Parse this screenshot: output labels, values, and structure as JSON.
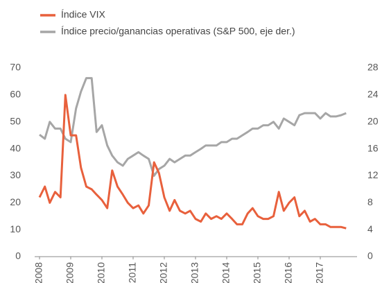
{
  "chart_data": {
    "type": "line",
    "series": [
      {
        "name": "Índice VIX",
        "color": "#e8603c",
        "values": [
          22,
          26,
          20,
          24,
          22,
          60,
          45,
          45,
          33,
          26,
          25,
          23,
          21,
          18,
          32,
          26,
          23,
          20,
          18,
          19,
          16,
          19,
          35,
          31,
          22,
          17,
          21,
          17,
          16,
          17,
          14,
          13,
          16,
          14,
          15,
          14,
          16,
          14,
          12,
          12,
          16,
          18,
          15,
          14,
          14,
          15,
          24,
          17,
          20,
          22,
          15,
          17,
          13,
          14,
          12,
          12,
          11,
          11,
          11,
          10.5
        ]
      },
      {
        "name": "Índice precio/ganancias operativas (S&P 500, eje der.)",
        "color": "#a6a6a6",
        "axis": "y2",
        "values": [
          18.1,
          17.5,
          20,
          19,
          19,
          17.5,
          17,
          22,
          24.5,
          26.5,
          26.5,
          18.5,
          19.5,
          16.5,
          15,
          14,
          13.5,
          14.5,
          15,
          15.5,
          15,
          14.5,
          12,
          13,
          13.5,
          14.5,
          14,
          14.5,
          15,
          15,
          15.5,
          16,
          16.5,
          16.5,
          16.5,
          17,
          17,
          17.5,
          17.5,
          18,
          18.5,
          19,
          19,
          19.5,
          19.5,
          20,
          19,
          20.5,
          20,
          19.5,
          21,
          21.3,
          21.3,
          21.3,
          20.5,
          21.3,
          20.8,
          20.8,
          21,
          21.3
        ]
      }
    ],
    "x": [
      2008,
      2008.17,
      2008.33,
      2008.5,
      2008.67,
      2008.83,
      2009,
      2009.17,
      2009.33,
      2009.5,
      2009.67,
      2009.83,
      2010,
      2010.17,
      2010.33,
      2010.5,
      2010.67,
      2010.83,
      2011,
      2011.17,
      2011.33,
      2011.5,
      2011.67,
      2011.83,
      2012,
      2012.17,
      2012.33,
      2012.5,
      2012.67,
      2012.83,
      2013,
      2013.17,
      2013.33,
      2013.5,
      2013.67,
      2013.83,
      2014,
      2014.17,
      2014.33,
      2014.5,
      2014.67,
      2014.83,
      2015,
      2015.17,
      2015.33,
      2015.5,
      2015.67,
      2015.83,
      2016,
      2016.17,
      2016.33,
      2016.5,
      2016.67,
      2016.83,
      2017,
      2017.17,
      2017.33,
      2017.5,
      2017.67,
      2017.83
    ],
    "xlim": [
      2008,
      2018
    ],
    "xticks": [
      2008,
      2009,
      2010,
      2011,
      2012,
      2013,
      2014,
      2015,
      2016,
      2017
    ],
    "ylim": [
      0,
      70
    ],
    "yticks": [
      0,
      10,
      20,
      30,
      40,
      50,
      60,
      70
    ],
    "y2lim": [
      0,
      28
    ],
    "y2ticks": [
      0,
      4,
      8,
      12,
      16,
      20,
      24,
      28
    ],
    "legend": "top-left",
    "grid": false
  }
}
